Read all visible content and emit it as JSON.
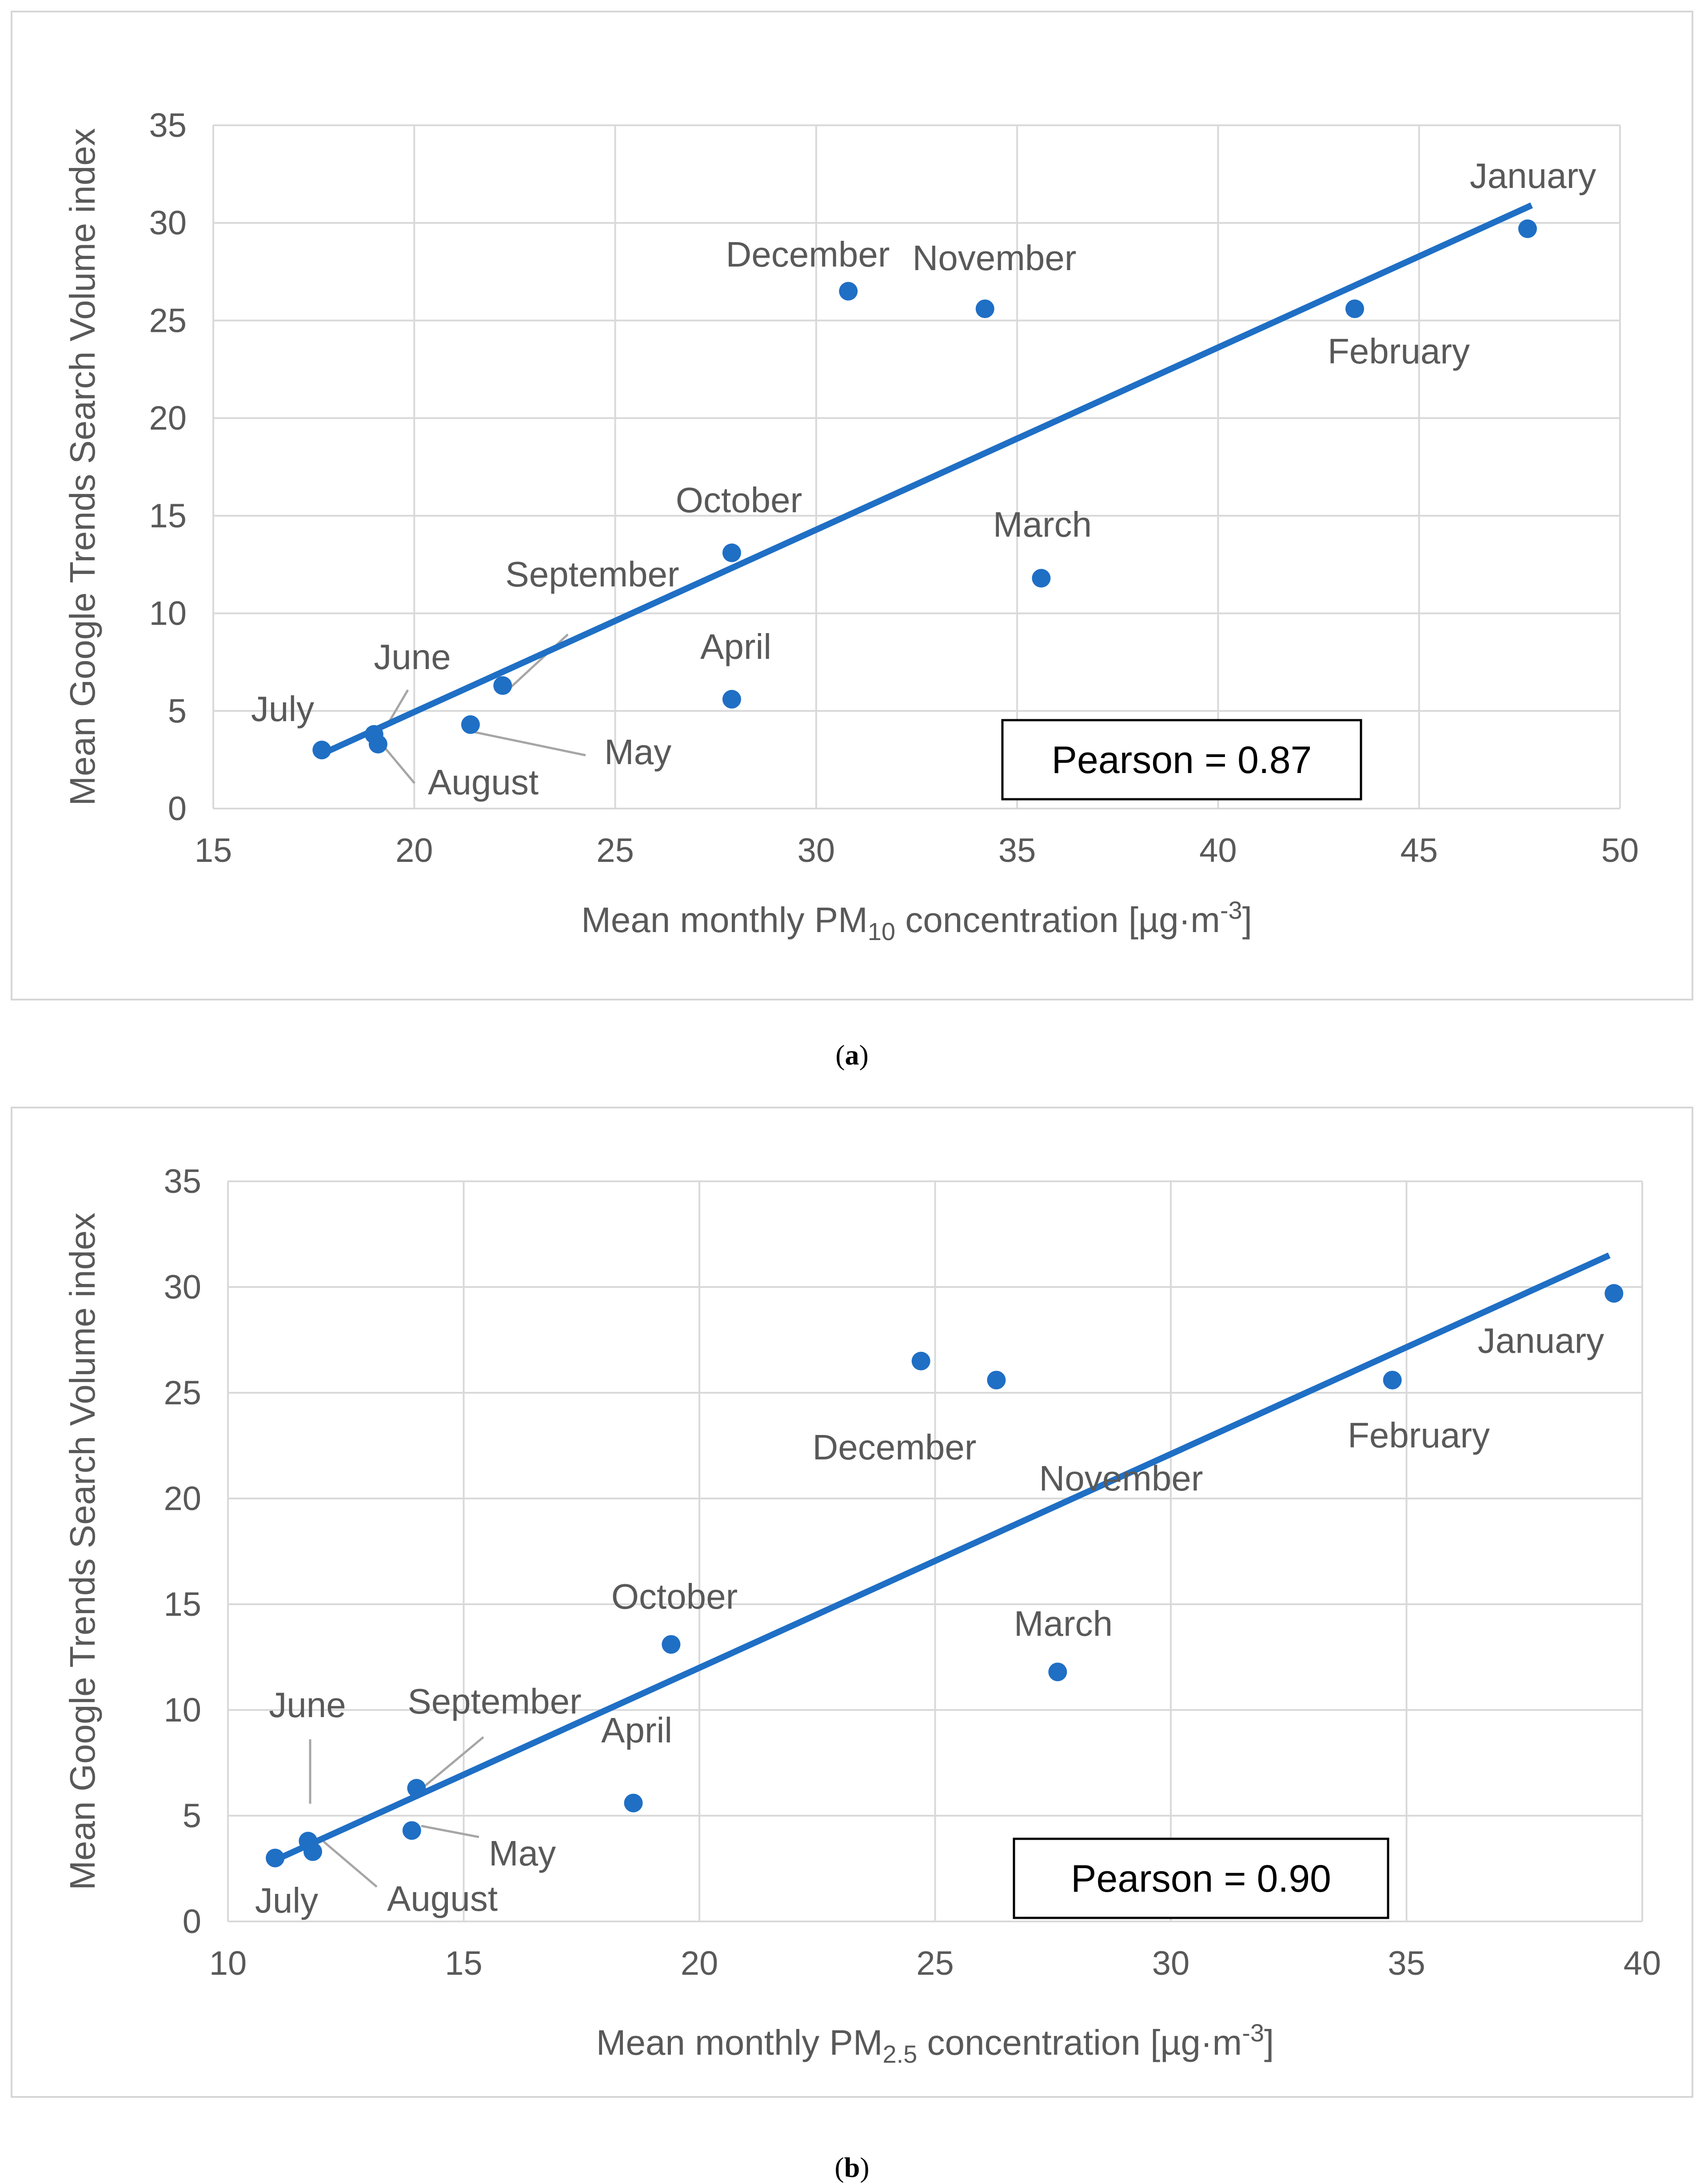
{
  "chart_data": [
    {
      "type": "scatter",
      "panel_label": "a",
      "title": "",
      "xlabel": {
        "prefix": "Mean monthly PM",
        "subscript": "10",
        "suffix": " concentration [µg·m",
        "superscript": "-3",
        "end": "]"
      },
      "ylabel": "Mean Google Trends Search Volume index",
      "xlim": [
        15,
        50
      ],
      "ylim": [
        0,
        35
      ],
      "xticks": [
        15,
        20,
        25,
        30,
        35,
        40,
        45,
        50
      ],
      "yticks": [
        0,
        5,
        10,
        15,
        20,
        25,
        30,
        35
      ],
      "grid": true,
      "annotation": "Pearson = 0.87",
      "trendline": {
        "x": [
          17.7,
          47.8
        ],
        "y": [
          2.8,
          30.9
        ]
      },
      "points": [
        {
          "label": "January",
          "x": 47.7,
          "y": 29.7
        },
        {
          "label": "February",
          "x": 43.4,
          "y": 25.6
        },
        {
          "label": "March",
          "x": 35.6,
          "y": 11.8
        },
        {
          "label": "April",
          "x": 27.9,
          "y": 5.6
        },
        {
          "label": "May",
          "x": 21.4,
          "y": 4.3
        },
        {
          "label": "June",
          "x": 19.0,
          "y": 3.8
        },
        {
          "label": "July",
          "x": 17.7,
          "y": 3.0
        },
        {
          "label": "August",
          "x": 19.1,
          "y": 3.3
        },
        {
          "label": "September",
          "x": 22.2,
          "y": 6.3
        },
        {
          "label": "October",
          "x": 27.9,
          "y": 13.1
        },
        {
          "label": "November",
          "x": 34.2,
          "y": 25.6
        },
        {
          "label": "December",
          "x": 30.8,
          "y": 26.5
        }
      ]
    },
    {
      "type": "scatter",
      "panel_label": "b",
      "title": "",
      "xlabel": {
        "prefix": "Mean monthly PM",
        "subscript": "2.5",
        "suffix": " concentration [µg·m",
        "superscript": "-3",
        "end": "]"
      },
      "ylabel": "Mean Google Trends Search Volume index",
      "xlim": [
        10,
        40
      ],
      "ylim": [
        0,
        35
      ],
      "xticks": [
        10,
        15,
        20,
        25,
        30,
        35,
        40
      ],
      "yticks": [
        0,
        5,
        10,
        15,
        20,
        25,
        30,
        35
      ],
      "grid": true,
      "annotation": "Pearson = 0.90",
      "trendline": {
        "x": [
          11.0,
          39.3
        ],
        "y": [
          2.9,
          31.5
        ]
      },
      "points": [
        {
          "label": "January",
          "x": 39.4,
          "y": 29.7
        },
        {
          "label": "February",
          "x": 34.7,
          "y": 25.6
        },
        {
          "label": "March",
          "x": 27.6,
          "y": 11.8
        },
        {
          "label": "April",
          "x": 18.6,
          "y": 5.6
        },
        {
          "label": "May",
          "x": 13.9,
          "y": 4.3
        },
        {
          "label": "June",
          "x": 11.7,
          "y": 3.8
        },
        {
          "label": "July",
          "x": 11.0,
          "y": 3.0
        },
        {
          "label": "August",
          "x": 11.8,
          "y": 3.3
        },
        {
          "label": "September",
          "x": 14.0,
          "y": 6.3
        },
        {
          "label": "October",
          "x": 19.4,
          "y": 13.1
        },
        {
          "label": "November",
          "x": 26.3,
          "y": 25.6
        },
        {
          "label": "December",
          "x": 24.7,
          "y": 26.5
        }
      ]
    }
  ],
  "colors": {
    "marker": "#1f6fc5",
    "trendline": "#1f6fc5",
    "grid": "#d9d9d9",
    "text": "#595959",
    "leader": "#a6a6a6"
  }
}
